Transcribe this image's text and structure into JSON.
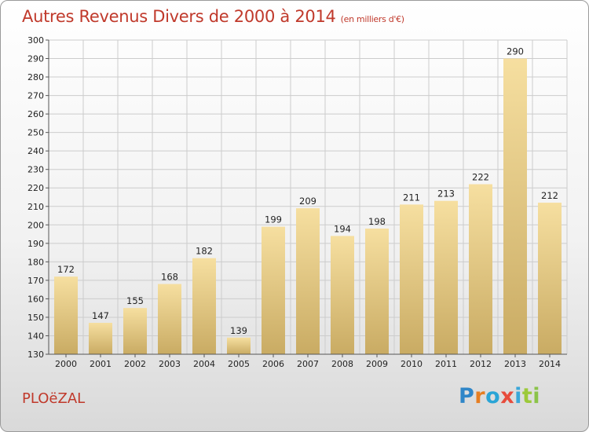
{
  "header": {
    "title": "Autres Revenus Divers de 2000 à 2014",
    "unit": "(en milliers d'€)"
  },
  "footer": {
    "commune": "PLOëZAL",
    "logo": "Proxiti"
  },
  "colors": {
    "title": "#c0392b",
    "bar_light": "#f6dfa0",
    "bar_dark": "#c9ab63",
    "grid": "#cccccc"
  },
  "chart_data": {
    "type": "bar",
    "title": "Autres Revenus Divers de 2000 à 2014",
    "subtitle": "(en milliers d'€)",
    "categories": [
      "2000",
      "2001",
      "2002",
      "2003",
      "2004",
      "2005",
      "2006",
      "2007",
      "2008",
      "2009",
      "2010",
      "2011",
      "2012",
      "2013",
      "2014"
    ],
    "values": [
      172,
      147,
      155,
      168,
      182,
      139,
      199,
      209,
      194,
      198,
      211,
      213,
      222,
      290,
      212
    ],
    "data_labels": [
      "172",
      "147",
      "155",
      "168",
      "182",
      "139",
      "199",
      "209",
      "194",
      "198",
      "211",
      "213",
      "222",
      "290",
      "212"
    ],
    "y_ticks": [
      "130",
      "140",
      "150",
      "160",
      "170",
      "180",
      "190",
      "200",
      "210",
      "220",
      "230",
      "240",
      "250",
      "260",
      "270",
      "280",
      "290",
      "300"
    ],
    "ylim": [
      130,
      300
    ],
    "grid": true,
    "legend": "none"
  }
}
